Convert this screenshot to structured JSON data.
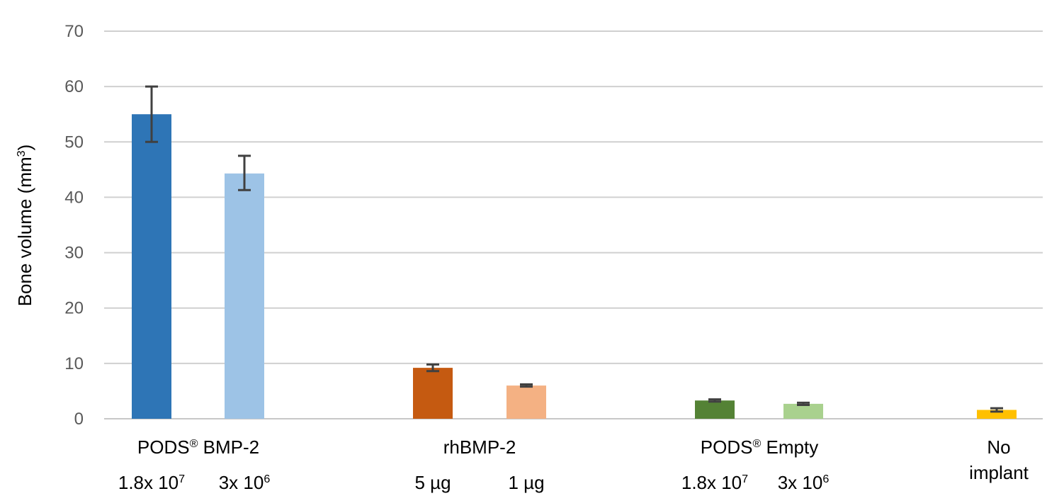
{
  "chart_data": {
    "type": "bar",
    "title": "",
    "xlabel": "",
    "ylabel": "Bone volume (mm",
    "ylabel_sup": "3",
    "ylabel_close": ")",
    "ylim": [
      0,
      70
    ],
    "yticks": [
      0,
      10,
      20,
      30,
      40,
      50,
      60,
      70
    ],
    "grid": true,
    "bars": [
      {
        "group": 0,
        "base": "1.8x 10",
        "sup": "7",
        "value": 55.0,
        "err_low": 50.0,
        "err_high": 60.0,
        "color": "#2E75B6"
      },
      {
        "group": 0,
        "base": "3x 10",
        "sup": "6",
        "value": 44.3,
        "err_low": 41.3,
        "err_high": 47.5,
        "color": "#9DC3E6"
      },
      {
        "group": 1,
        "base": "5 µg",
        "sup": "",
        "value": 9.2,
        "err_low": 8.6,
        "err_high": 9.8,
        "color": "#C55A11"
      },
      {
        "group": 1,
        "base": "1 µg",
        "sup": "",
        "value": 6.0,
        "err_low": 5.8,
        "err_high": 6.2,
        "color": "#F4B183"
      },
      {
        "group": 2,
        "base": "1.8x 10",
        "sup": "7",
        "value": 3.3,
        "err_low": 3.1,
        "err_high": 3.5,
        "color": "#548235"
      },
      {
        "group": 2,
        "base": "3x 10",
        "sup": "6",
        "value": 2.7,
        "err_low": 2.5,
        "err_high": 2.9,
        "color": "#A9D18E"
      },
      {
        "group": 3,
        "base": "",
        "sup": "",
        "value": 1.6,
        "err_low": 1.3,
        "err_high": 1.9,
        "color": "#FFC000"
      }
    ],
    "groups": [
      {
        "lines": [
          {
            "base": "PODS",
            "sup": "®",
            "rest": " BMP-2"
          }
        ]
      },
      {
        "lines": [
          {
            "base": "rhBMP-2",
            "sup": "",
            "rest": ""
          }
        ]
      },
      {
        "lines": [
          {
            "base": "PODS",
            "sup": "®",
            "rest": " Empty"
          }
        ]
      },
      {
        "lines": [
          {
            "base": "No",
            "sup": "",
            "rest": ""
          },
          {
            "base": "implant",
            "sup": "",
            "rest": ""
          }
        ]
      }
    ]
  }
}
